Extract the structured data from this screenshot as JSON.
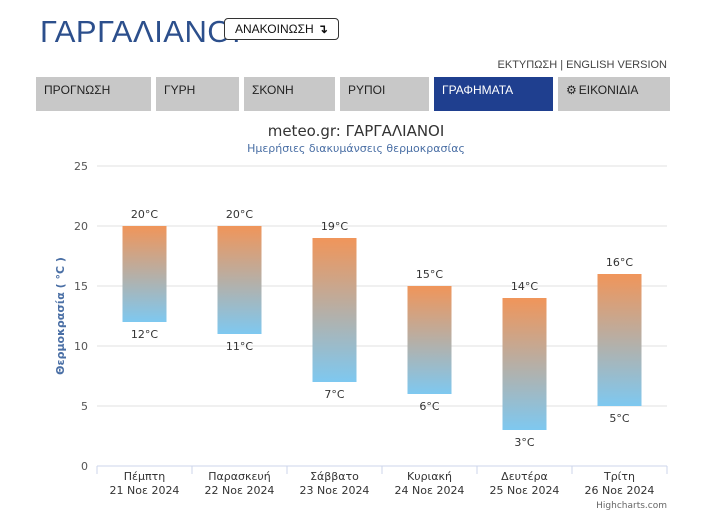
{
  "header": {
    "title": "ΓΑΡΓΑΛΙΑΝΟΙ",
    "announce_label": "ΑΝΑΚΟΙΝΩΣΗ",
    "announce_icon": "arrow-down-right-icon",
    "print_link": "ΕΚΤΥΠΩΣΗ",
    "separator": "|",
    "english_link": "ENGLISH VERSION"
  },
  "tabs": [
    {
      "label": "ΠΡΟΓΝΩΣΗ",
      "active": false
    },
    {
      "label": "ΓΥΡΗ",
      "active": false
    },
    {
      "label": "ΣΚΟΝΗ",
      "active": false
    },
    {
      "label": "ΡΥΠΟΙ",
      "active": false
    },
    {
      "label": "ΓΡΑΦΗΜΑΤΑ",
      "active": true
    },
    {
      "label": "ΕΙΚΟΝΙΔΙΑ",
      "active": false,
      "icon": "gear-icon"
    }
  ],
  "chart_data": {
    "type": "bar",
    "title": "meteo.gr: ΓΑΡΓΑΛΙΑΝΟΙ",
    "subtitle": "Ημερήσιες διακυμάνσεις θερμοκρασίας",
    "ylabel": "Θερμοκρασία ( °C )",
    "ylim": [
      0,
      25
    ],
    "yticks": [
      "0",
      "5",
      "10",
      "15",
      "20",
      "25"
    ],
    "categories": [
      {
        "day": "Πέμπτη",
        "date": "21 Νοε 2024"
      },
      {
        "day": "Παρασκευή",
        "date": "22 Νοε 2024"
      },
      {
        "day": "Σάββατο",
        "date": "23 Νοε 2024"
      },
      {
        "day": "Κυριακή",
        "date": "24 Νοε 2024"
      },
      {
        "day": "Δευτέρα",
        "date": "25 Νοε 2024"
      },
      {
        "day": "Τρίτη",
        "date": "26 Νοε 2024"
      }
    ],
    "low": [
      12,
      11,
      7,
      6,
      3,
      5
    ],
    "high": [
      20,
      20,
      19,
      15,
      14,
      16
    ],
    "low_labels": [
      "12°C",
      "11°C",
      "7°C",
      "6°C",
      "3°C",
      "5°C"
    ],
    "high_labels": [
      "20°C",
      "20°C",
      "19°C",
      "15°C",
      "14°C",
      "16°C"
    ],
    "gradient_top": "#f0955a",
    "gradient_bottom": "#7ec8f0",
    "credit": "Highcharts.com",
    "grid": true
  }
}
